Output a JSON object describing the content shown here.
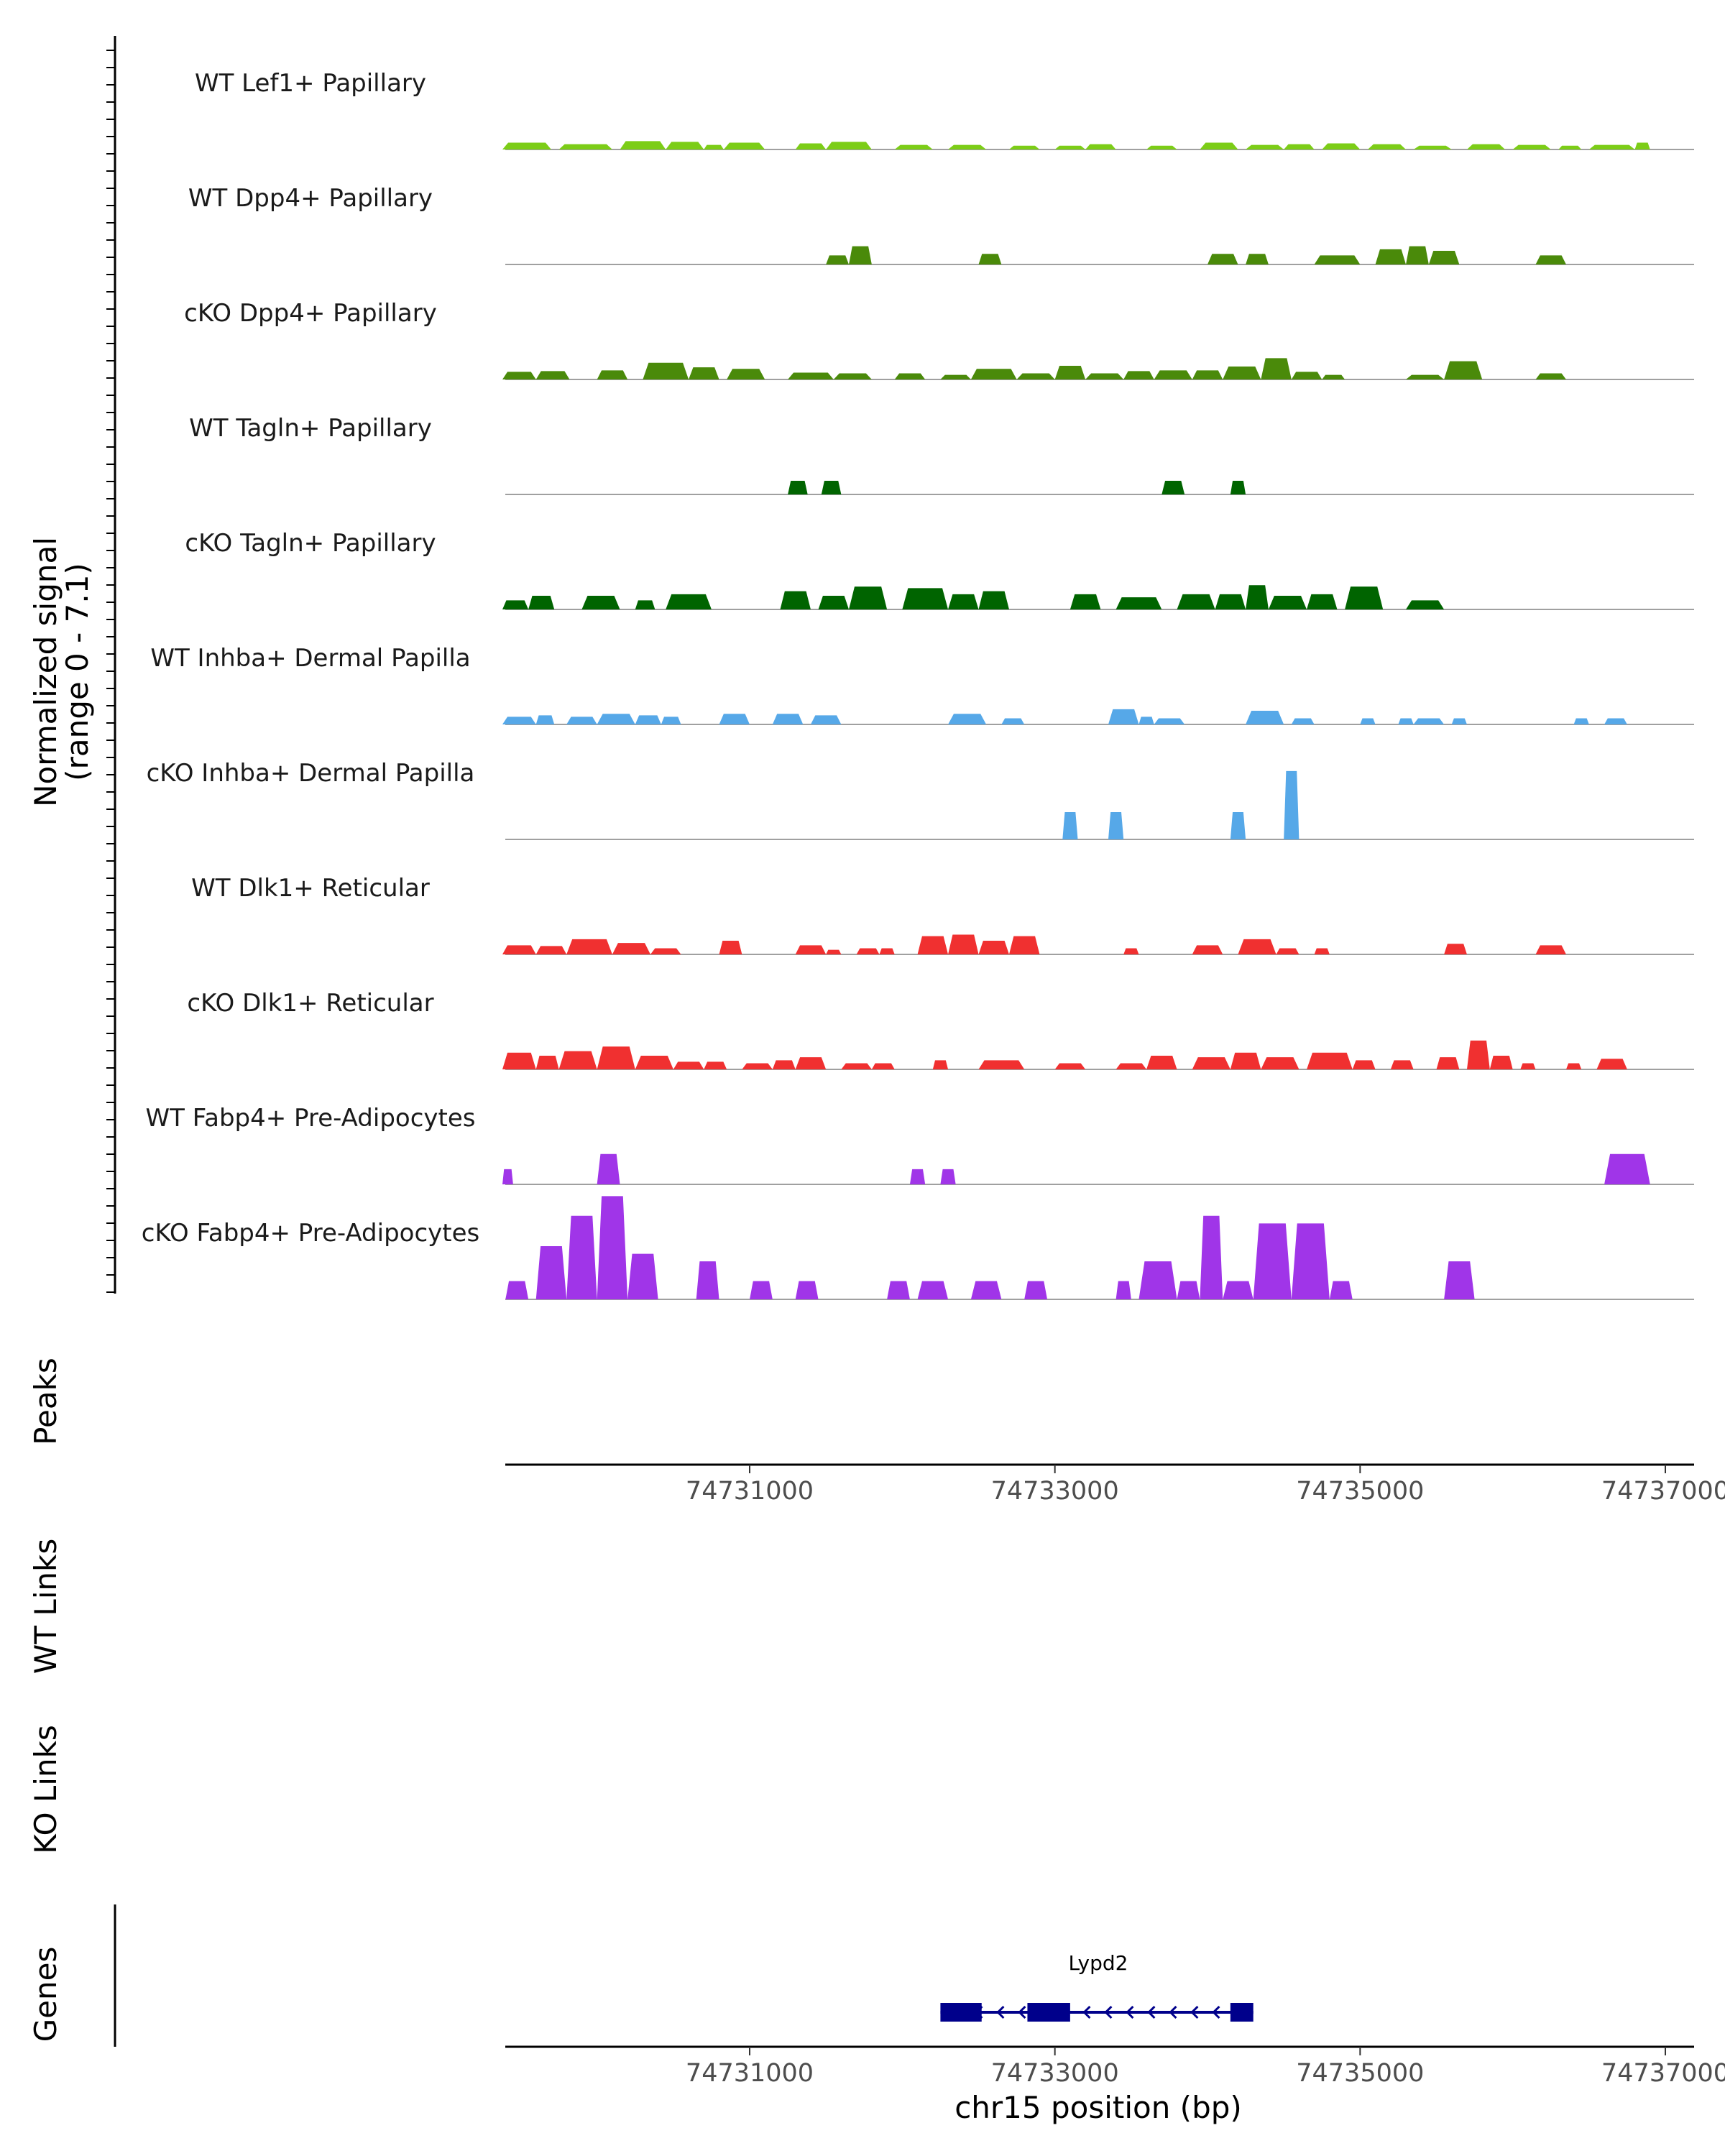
{
  "chart_data": {
    "type": "area",
    "title": "",
    "chromosome": "chr15",
    "xlabel": "chr15 position (bp)",
    "xlim": [
      74729200,
      74737000
    ],
    "xticks": [
      74731000,
      74733000,
      74735000,
      74737000
    ],
    "xtick_labels": [
      "74731000",
      "74733000",
      "74735000",
      "74737000"
    ],
    "ylabel_line1": "Normalized signal",
    "ylabel_line2": "(range 0 - 7.1)",
    "ylim": [
      0,
      7.1
    ],
    "series": [
      {
        "name": "WT Lef1+ Papillary",
        "color": "#7CCD17",
        "peaks": [
          [
            74729380,
            74729700,
            0.45
          ],
          [
            74729750,
            74730100,
            0.35
          ],
          [
            74730150,
            74730450,
            0.55
          ],
          [
            74730450,
            74730700,
            0.5
          ],
          [
            74730700,
            74730830,
            0.3
          ],
          [
            74730830,
            74731100,
            0.45
          ],
          [
            74731300,
            74731500,
            0.4
          ],
          [
            74731500,
            74731800,
            0.5
          ],
          [
            74731950,
            74732200,
            0.3
          ],
          [
            74732300,
            74732550,
            0.3
          ],
          [
            74732700,
            74732900,
            0.25
          ],
          [
            74733000,
            74733200,
            0.25
          ],
          [
            74733200,
            74733400,
            0.35
          ],
          [
            74733600,
            74733800,
            0.25
          ],
          [
            74733950,
            74734200,
            0.45
          ],
          [
            74734250,
            74734500,
            0.3
          ],
          [
            74734500,
            74734700,
            0.35
          ],
          [
            74734750,
            74735000,
            0.4
          ],
          [
            74735050,
            74735300,
            0.35
          ],
          [
            74735350,
            74735600,
            0.25
          ],
          [
            74735700,
            74735950,
            0.35
          ],
          [
            74736000,
            74736250,
            0.3
          ],
          [
            74736300,
            74736450,
            0.25
          ],
          [
            74736500,
            74736800,
            0.3
          ],
          [
            74736800,
            74736900,
            0.45
          ]
        ]
      },
      {
        "name": "WT Dpp4+ Papillary",
        "color": "#4A8A0A",
        "peaks": [
          [
            74731500,
            74731650,
            0.6
          ],
          [
            74731650,
            74731800,
            1.2
          ],
          [
            74732500,
            74732650,
            0.7
          ],
          [
            74734000,
            74734200,
            0.7
          ],
          [
            74734250,
            74734400,
            0.7
          ],
          [
            74734700,
            74735000,
            0.6
          ],
          [
            74735100,
            74735300,
            1.0
          ],
          [
            74735300,
            74735450,
            1.2
          ],
          [
            74735450,
            74735650,
            0.9
          ],
          [
            74736150,
            74736350,
            0.6
          ]
        ]
      },
      {
        "name": "cKO Dpp4+ Papillary",
        "color": "#4A8A0A",
        "peaks": [
          [
            74729380,
            74729600,
            0.5
          ],
          [
            74729600,
            74729820,
            0.55
          ],
          [
            74730000,
            74730200,
            0.6
          ],
          [
            74730300,
            74730600,
            1.1
          ],
          [
            74730600,
            74730800,
            0.8
          ],
          [
            74730850,
            74731100,
            0.7
          ],
          [
            74731250,
            74731550,
            0.45
          ],
          [
            74731550,
            74731800,
            0.4
          ],
          [
            74731950,
            74732150,
            0.4
          ],
          [
            74732250,
            74732450,
            0.3
          ],
          [
            74732450,
            74732750,
            0.7
          ],
          [
            74732750,
            74733000,
            0.4
          ],
          [
            74733000,
            74733200,
            0.9
          ],
          [
            74733200,
            74733450,
            0.4
          ],
          [
            74733450,
            74733650,
            0.55
          ],
          [
            74733650,
            74733900,
            0.6
          ],
          [
            74733900,
            74734100,
            0.6
          ],
          [
            74734100,
            74734350,
            0.85
          ],
          [
            74734350,
            74734550,
            1.4
          ],
          [
            74734550,
            74734750,
            0.5
          ],
          [
            74734750,
            74734900,
            0.3
          ],
          [
            74735300,
            74735550,
            0.3
          ],
          [
            74735550,
            74735800,
            1.2
          ],
          [
            74736150,
            74736350,
            0.4
          ]
        ]
      },
      {
        "name": "WT Tagln+ Papillary",
        "color": "#006400",
        "peaks": [
          [
            74731250,
            74731380,
            0.9
          ],
          [
            74731470,
            74731600,
            0.9
          ],
          [
            74733700,
            74733850,
            0.9
          ],
          [
            74734150,
            74734250,
            0.9
          ]
        ]
      },
      {
        "name": "cKO Tagln+ Papillary",
        "color": "#006400",
        "peaks": [
          [
            74729380,
            74729550,
            0.6
          ],
          [
            74729550,
            74729720,
            0.9
          ],
          [
            74729900,
            74730150,
            0.9
          ],
          [
            74730250,
            74730380,
            0.6
          ],
          [
            74730450,
            74730750,
            1.0
          ],
          [
            74731200,
            74731400,
            1.2
          ],
          [
            74731450,
            74731650,
            0.9
          ],
          [
            74731650,
            74731900,
            1.5
          ],
          [
            74732000,
            74732300,
            1.4
          ],
          [
            74732300,
            74732500,
            1.0
          ],
          [
            74732500,
            74732700,
            1.2
          ],
          [
            74733100,
            74733300,
            1.0
          ],
          [
            74733400,
            74733700,
            0.8
          ],
          [
            74733800,
            74734050,
            1.0
          ],
          [
            74734050,
            74734250,
            1.0
          ],
          [
            74734250,
            74734400,
            1.6
          ],
          [
            74734400,
            74734650,
            0.9
          ],
          [
            74734650,
            74734850,
            1.0
          ],
          [
            74734900,
            74735150,
            1.5
          ],
          [
            74735300,
            74735550,
            0.6
          ]
        ]
      },
      {
        "name": "WT Inhba+ Dermal Papilla",
        "color": "#56A8E8",
        "peaks": [
          [
            74729380,
            74729600,
            0.5
          ],
          [
            74729600,
            74729720,
            0.6
          ],
          [
            74729800,
            74730000,
            0.5
          ],
          [
            74730000,
            74730250,
            0.7
          ],
          [
            74730250,
            74730420,
            0.6
          ],
          [
            74730420,
            74730550,
            0.5
          ],
          [
            74730800,
            74731000,
            0.7
          ],
          [
            74731150,
            74731350,
            0.7
          ],
          [
            74731400,
            74731600,
            0.6
          ],
          [
            74732300,
            74732550,
            0.7
          ],
          [
            74732650,
            74732800,
            0.4
          ],
          [
            74733350,
            74733550,
            1.0
          ],
          [
            74733550,
            74733650,
            0.5
          ],
          [
            74733650,
            74733850,
            0.4
          ],
          [
            74734250,
            74734500,
            0.9
          ],
          [
            74734550,
            74734700,
            0.4
          ],
          [
            74735000,
            74735100,
            0.4
          ],
          [
            74735250,
            74735350,
            0.4
          ],
          [
            74735350,
            74735550,
            0.4
          ],
          [
            74735600,
            74735700,
            0.4
          ],
          [
            74736400,
            74736500,
            0.4
          ],
          [
            74736600,
            74736750,
            0.4
          ]
        ]
      },
      {
        "name": "cKO Inhba+ Dermal Papilla",
        "color": "#56A8E8",
        "peaks": [
          [
            74733050,
            74733150,
            1.8
          ],
          [
            74733350,
            74733450,
            1.8
          ],
          [
            74734150,
            74734250,
            1.8
          ],
          [
            74734500,
            74734600,
            4.5
          ]
        ]
      },
      {
        "name": "WT Dlk1+ Reticular",
        "color": "#F03030",
        "peaks": [
          [
            74729380,
            74729600,
            0.6
          ],
          [
            74729600,
            74729800,
            0.55
          ],
          [
            74729800,
            74730100,
            1.0
          ],
          [
            74730100,
            74730350,
            0.75
          ],
          [
            74730350,
            74730550,
            0.4
          ],
          [
            74730800,
            74730950,
            0.9
          ],
          [
            74731300,
            74731500,
            0.6
          ],
          [
            74731500,
            74731600,
            0.3
          ],
          [
            74731700,
            74731850,
            0.4
          ],
          [
            74731850,
            74731950,
            0.4
          ],
          [
            74732100,
            74732300,
            1.2
          ],
          [
            74732300,
            74732500,
            1.3
          ],
          [
            74732500,
            74732700,
            0.9
          ],
          [
            74732700,
            74732900,
            1.2
          ],
          [
            74733450,
            74733550,
            0.4
          ],
          [
            74733900,
            74734100,
            0.6
          ],
          [
            74734200,
            74734450,
            1.0
          ],
          [
            74734450,
            74734600,
            0.4
          ],
          [
            74734700,
            74734800,
            0.4
          ],
          [
            74735550,
            74735700,
            0.7
          ],
          [
            74736150,
            74736350,
            0.6
          ]
        ]
      },
      {
        "name": "cKO Dlk1+ Reticular",
        "color": "#F03030",
        "peaks": [
          [
            74729380,
            74729600,
            1.1
          ],
          [
            74729600,
            74729750,
            0.9
          ],
          [
            74729750,
            74730000,
            1.2
          ],
          [
            74730000,
            74730250,
            1.5
          ],
          [
            74730250,
            74730500,
            0.9
          ],
          [
            74730500,
            74730700,
            0.5
          ],
          [
            74730700,
            74730850,
            0.5
          ],
          [
            74730950,
            74731150,
            0.4
          ],
          [
            74731150,
            74731300,
            0.6
          ],
          [
            74731300,
            74731500,
            0.8
          ],
          [
            74731600,
            74731800,
            0.4
          ],
          [
            74731800,
            74731950,
            0.4
          ],
          [
            74732200,
            74732300,
            0.6
          ],
          [
            74732500,
            74732800,
            0.6
          ],
          [
            74733000,
            74733200,
            0.4
          ],
          [
            74733400,
            74733600,
            0.4
          ],
          [
            74733600,
            74733800,
            0.9
          ],
          [
            74733900,
            74734150,
            0.8
          ],
          [
            74734150,
            74734350,
            1.1
          ],
          [
            74734350,
            74734600,
            0.8
          ],
          [
            74734650,
            74734950,
            1.1
          ],
          [
            74734950,
            74735100,
            0.6
          ],
          [
            74735200,
            74735350,
            0.6
          ],
          [
            74735500,
            74735650,
            0.8
          ],
          [
            74735700,
            74735850,
            1.9
          ],
          [
            74735850,
            74736000,
            0.9
          ],
          [
            74736050,
            74736150,
            0.4
          ],
          [
            74736350,
            74736450,
            0.4
          ],
          [
            74736550,
            74736750,
            0.7
          ]
        ]
      },
      {
        "name": "WT Fabp4+ Pre-Adipocytes",
        "color": "#A035E8",
        "peaks": [
          [
            74729380,
            74729450,
            1.0
          ],
          [
            74730000,
            74730150,
            2.0
          ],
          [
            74732050,
            74732150,
            1.0
          ],
          [
            74732250,
            74732350,
            1.0
          ],
          [
            74736600,
            74736900,
            2.0
          ]
        ]
      },
      {
        "name": "cKO Fabp4+ Pre-Adipocytes",
        "color": "#A035E8",
        "peaks": [
          [
            74729400,
            74729550,
            1.2
          ],
          [
            74729600,
            74729800,
            3.5
          ],
          [
            74729800,
            74730000,
            5.5
          ],
          [
            74730000,
            74730200,
            6.8
          ],
          [
            74730200,
            74730400,
            3.0
          ],
          [
            74730650,
            74730800,
            2.5
          ],
          [
            74731000,
            74731150,
            1.2
          ],
          [
            74731300,
            74731450,
            1.2
          ],
          [
            74731900,
            74732050,
            1.2
          ],
          [
            74732100,
            74732300,
            1.2
          ],
          [
            74732450,
            74732650,
            1.2
          ],
          [
            74732800,
            74732950,
            1.2
          ],
          [
            74733400,
            74733500,
            1.2
          ],
          [
            74733550,
            74733800,
            2.5
          ],
          [
            74733800,
            74733950,
            1.2
          ],
          [
            74733950,
            74734100,
            5.5
          ],
          [
            74734100,
            74734300,
            1.2
          ],
          [
            74734300,
            74734550,
            5.0
          ],
          [
            74734550,
            74734800,
            5.0
          ],
          [
            74734800,
            74734950,
            1.2
          ],
          [
            74735550,
            74735750,
            2.5
          ]
        ]
      }
    ],
    "peaks_track_label": "Peaks",
    "links_tracks": [
      "WT Links",
      "KO Links"
    ],
    "genes_track_label": "Genes",
    "gene": {
      "name": "Lypd2",
      "start": 74732250,
      "end": 74734300,
      "strand": "-",
      "exons": [
        [
          74732250,
          74732520
        ],
        [
          74732820,
          74733100
        ],
        [
          74734150,
          74734300
        ]
      ],
      "color": "#00008B"
    }
  }
}
